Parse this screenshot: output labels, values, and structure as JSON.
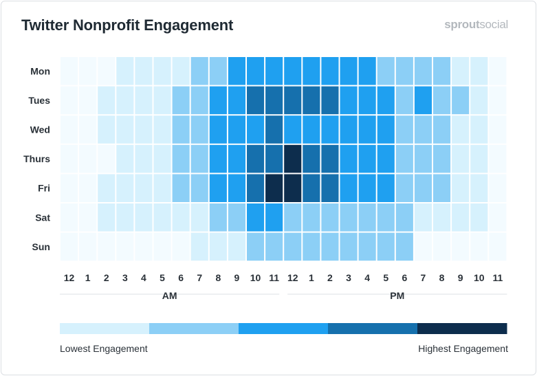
{
  "brand": {
    "name_bold": "sprout",
    "name_light": "social"
  },
  "chart_data": {
    "type": "heatmap",
    "title": "Twitter Nonprofit Engagement",
    "rows": [
      "Mon",
      "Tues",
      "Wed",
      "Thurs",
      "Fri",
      "Sat",
      "Sun"
    ],
    "columns": [
      "12",
      "1",
      "2",
      "3",
      "4",
      "5",
      "6",
      "7",
      "8",
      "9",
      "10",
      "11",
      "12",
      "1",
      "2",
      "3",
      "4",
      "5",
      "6",
      "7",
      "8",
      "9",
      "10",
      "11"
    ],
    "periods": [
      "AM",
      "PM"
    ],
    "values": [
      [
        0,
        0,
        0,
        1,
        1,
        1,
        1,
        2,
        2,
        3,
        3,
        3,
        3,
        3,
        3,
        3,
        3,
        2,
        2,
        2,
        2,
        1,
        1,
        0
      ],
      [
        0,
        0,
        1,
        1,
        1,
        1,
        2,
        2,
        3,
        3,
        4,
        4,
        4,
        4,
        4,
        3,
        3,
        3,
        2,
        3,
        2,
        2,
        1,
        0
      ],
      [
        0,
        0,
        1,
        1,
        1,
        1,
        2,
        2,
        3,
        3,
        3,
        4,
        3,
        3,
        3,
        3,
        3,
        3,
        2,
        2,
        2,
        1,
        1,
        0
      ],
      [
        0,
        0,
        0,
        1,
        1,
        1,
        2,
        2,
        3,
        3,
        4,
        4,
        5,
        4,
        4,
        3,
        3,
        3,
        2,
        2,
        2,
        1,
        1,
        0
      ],
      [
        0,
        0,
        1,
        1,
        1,
        1,
        2,
        2,
        3,
        3,
        4,
        5,
        5,
        4,
        4,
        3,
        3,
        3,
        2,
        2,
        2,
        1,
        1,
        0
      ],
      [
        0,
        0,
        1,
        1,
        1,
        1,
        1,
        1,
        2,
        2,
        3,
        3,
        2,
        2,
        2,
        2,
        2,
        2,
        2,
        1,
        1,
        1,
        1,
        0
      ],
      [
        0,
        0,
        0,
        0,
        0,
        0,
        0,
        1,
        1,
        1,
        2,
        2,
        2,
        2,
        2,
        2,
        2,
        2,
        2,
        0,
        0,
        0,
        0,
        0
      ]
    ],
    "levels": [
      "#f3fbff",
      "#d6f1fd",
      "#8ccff6",
      "#1fa0f0",
      "#1670ad",
      "#0d2d4d"
    ],
    "legend": {
      "colors": [
        "#d6f1fd",
        "#8ccff6",
        "#1fa0f0",
        "#1670ad",
        "#0d2d4d"
      ],
      "low_label": "Lowest Engagement",
      "high_label": "Highest Engagement"
    }
  }
}
